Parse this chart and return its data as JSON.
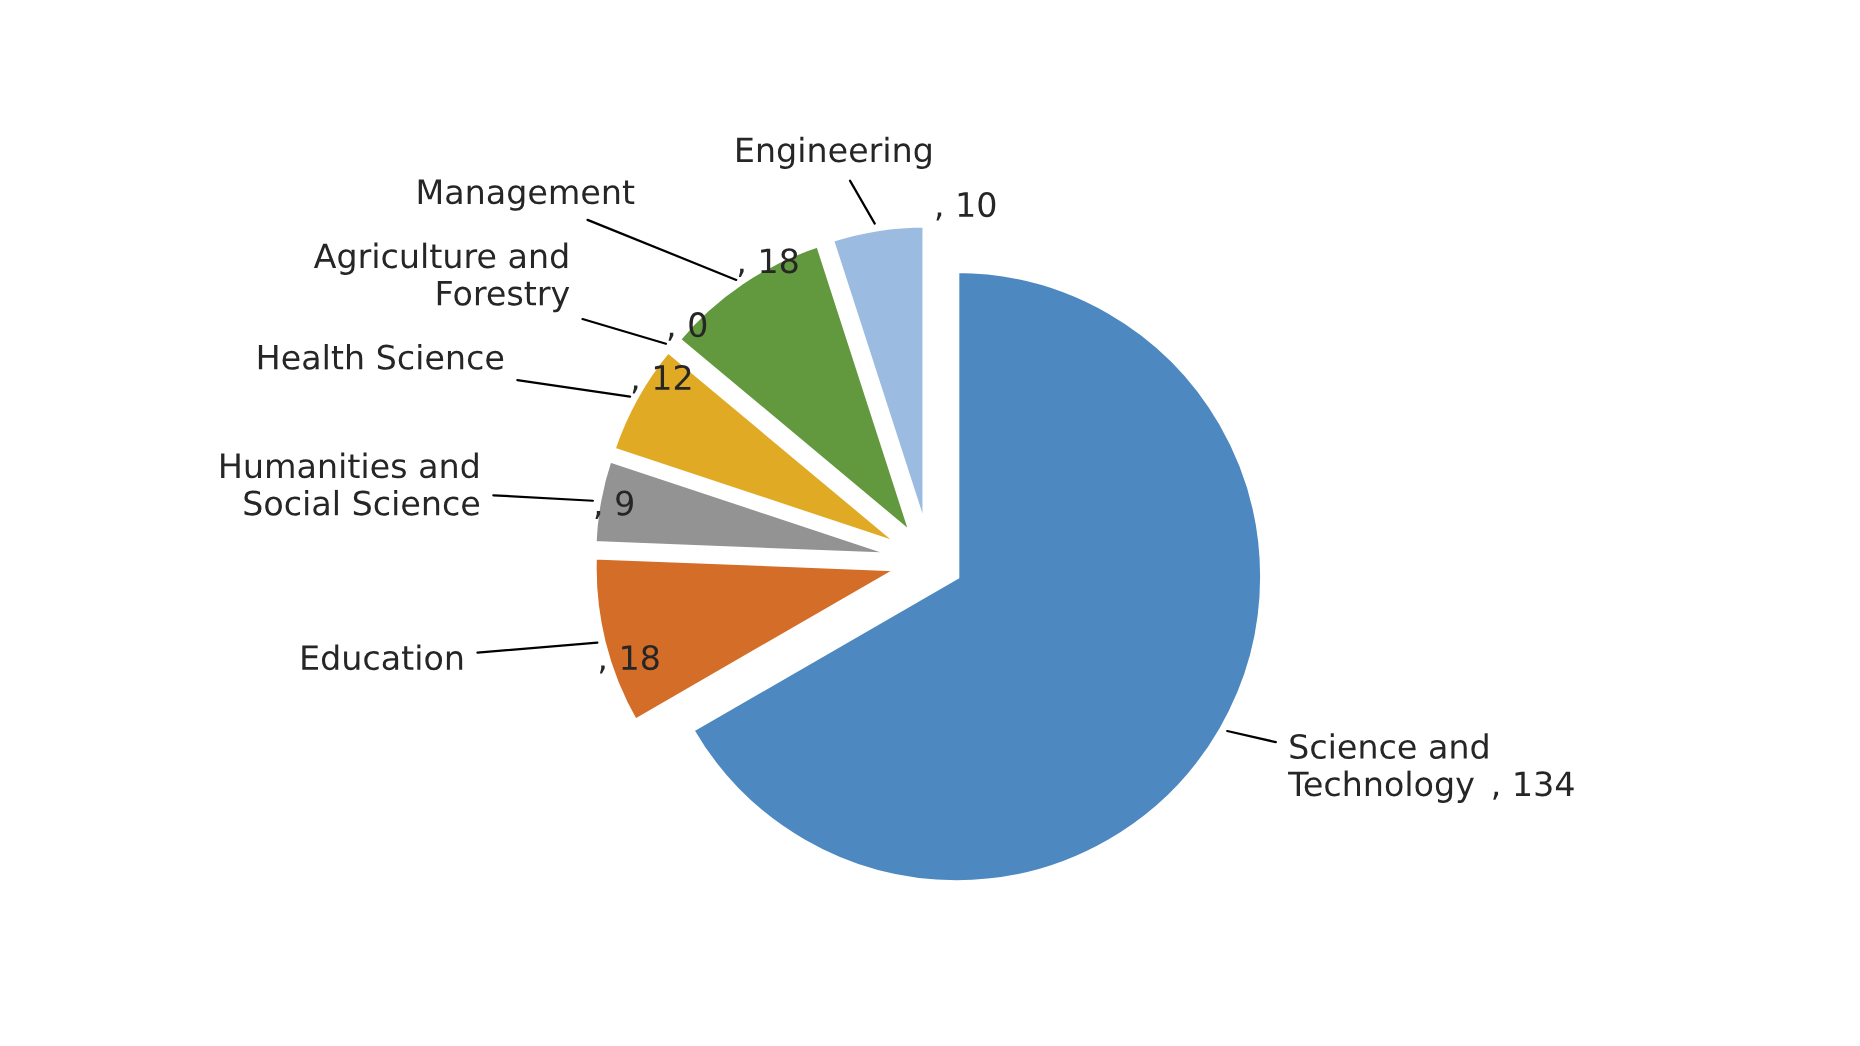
{
  "chart_data": {
    "type": "pie",
    "categories": [
      "Science and\nTechnology",
      "Education",
      "Humanities and\nSocial Science",
      "Health Science",
      "Agriculture and\nForestry",
      "Management",
      "Engineering"
    ],
    "values": [
      134,
      18,
      9,
      12,
      0,
      18,
      10
    ],
    "colors": [
      "#4e88c0",
      "#d46d27",
      "#939393",
      "#e0aa24",
      "#5b7fb4",
      "#62993f",
      "#9bbbe0"
    ],
    "value_labels": [
      ", 134",
      ", 18",
      ", 9",
      ", 12",
      ", 0",
      ", 18",
      ", 10"
    ]
  }
}
